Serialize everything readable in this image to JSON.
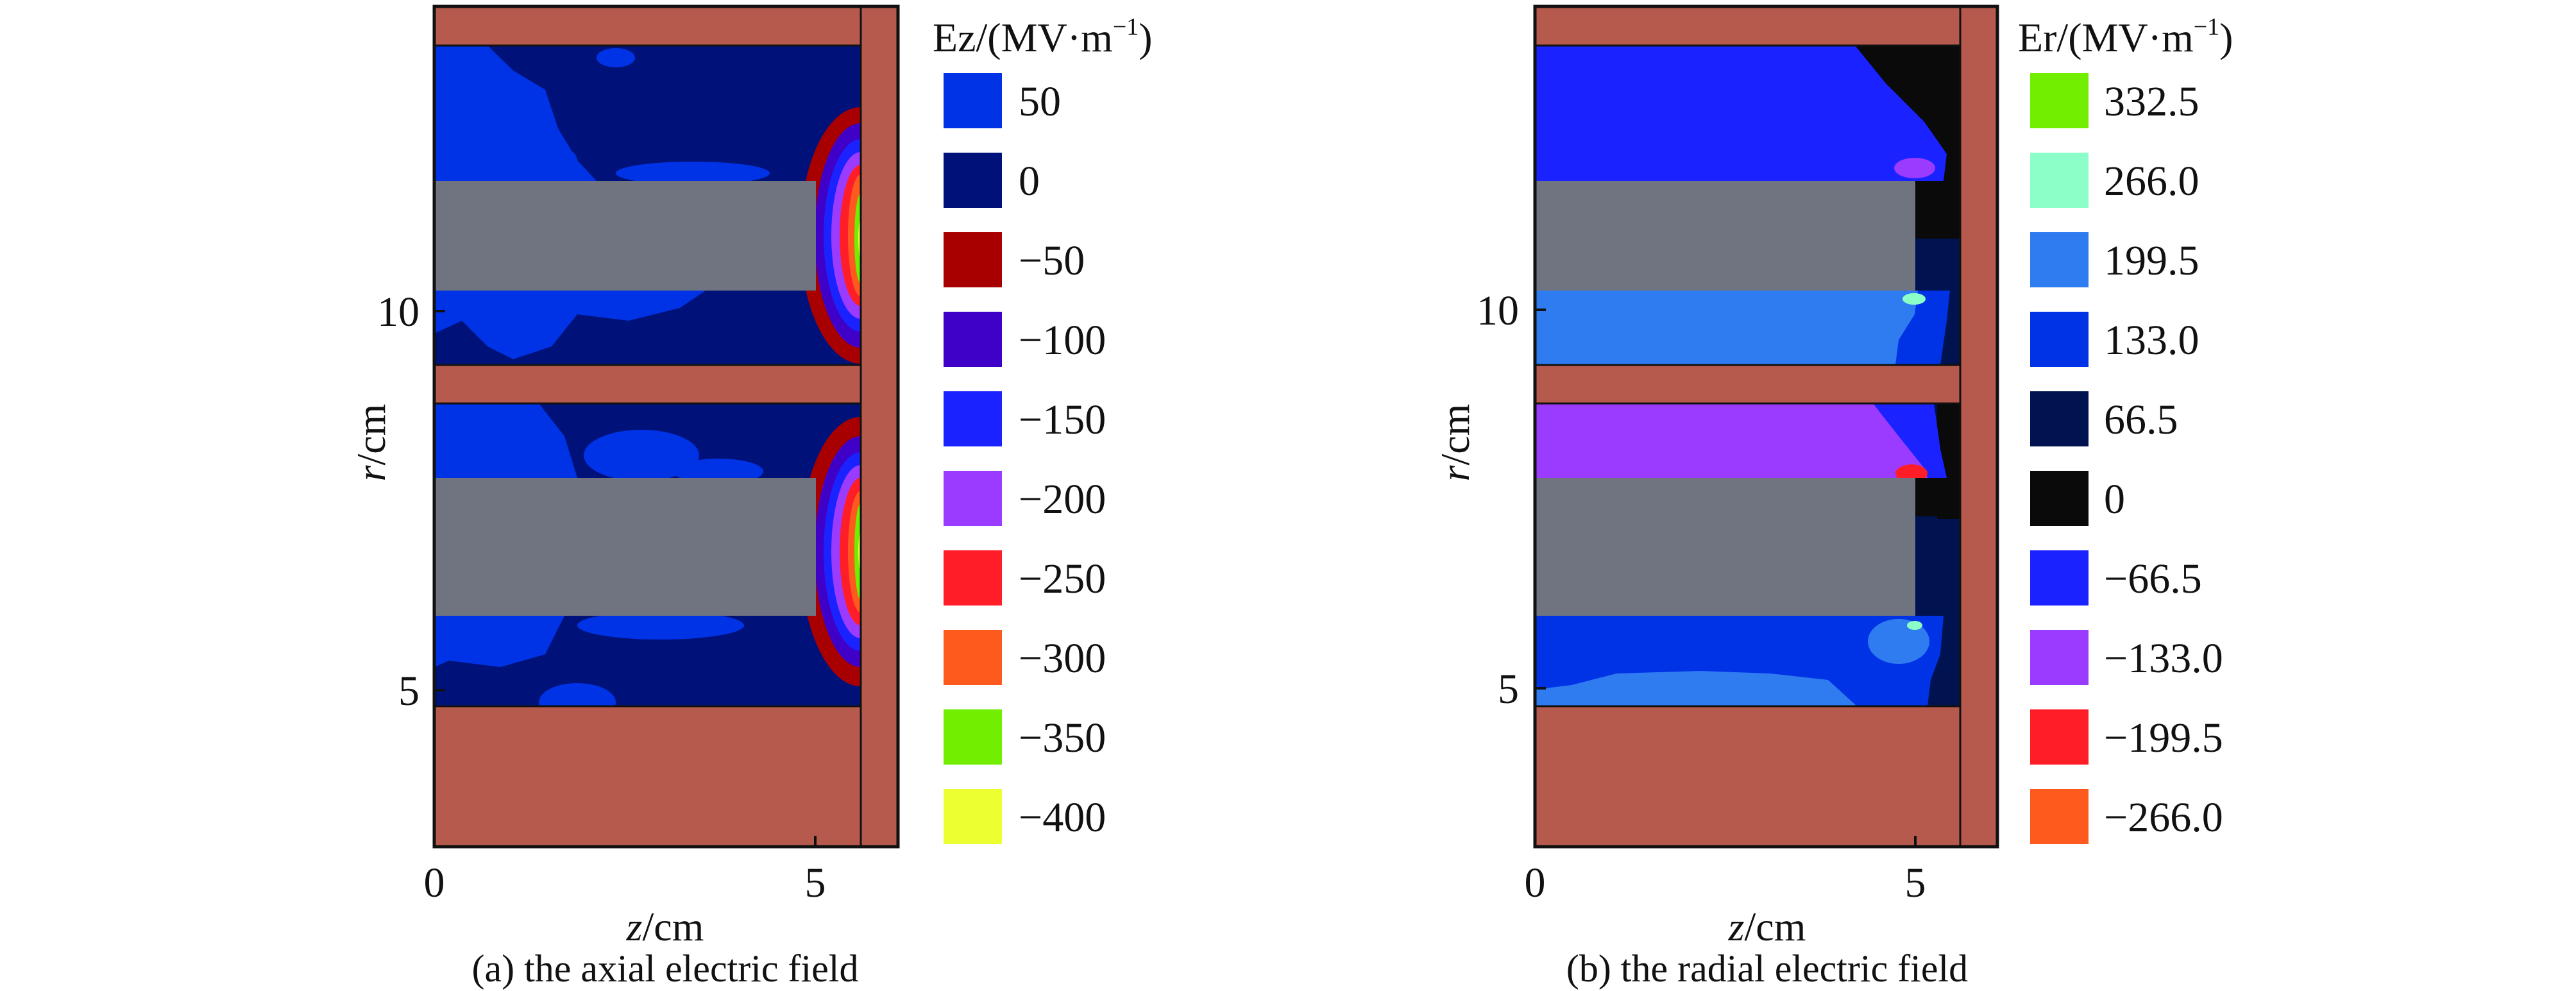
{
  "chart_data": [
    {
      "type": "heatmap",
      "panel": "a",
      "caption": "(a) the axial electric field",
      "xlabel_var": "z",
      "xlabel_unit": "/cm",
      "ylabel_var": "r",
      "ylabel_unit": "/cm",
      "xticks": [
        "0",
        "5"
      ],
      "yticks": [
        "10",
        "5"
      ],
      "colorbar_title": "Ez/(MV·m",
      "colorbar_title_sup": "−1",
      "colorbar_title_suffix": ")",
      "levels": [
        {
          "label": "50",
          "value": 50,
          "color": "#0033E6"
        },
        {
          "label": "0",
          "value": 0,
          "color": "#00127A"
        },
        {
          "label": "−50",
          "value": -50,
          "color": "#A80000"
        },
        {
          "label": "−100",
          "value": -100,
          "color": "#3F00C8"
        },
        {
          "label": "−150",
          "value": -150,
          "color": "#1A22FF"
        },
        {
          "label": "−200",
          "value": -200,
          "color": "#9B3BFF"
        },
        {
          "label": "−250",
          "value": -250,
          "color": "#FF1E28"
        },
        {
          "label": "−300",
          "value": -300,
          "color": "#FF5A1E"
        },
        {
          "label": "−350",
          "value": -350,
          "color": "#72EE00"
        },
        {
          "label": "−400",
          "value": -400,
          "color": "#ECFF30"
        }
      ]
    },
    {
      "type": "heatmap",
      "panel": "b",
      "caption": "(b) the radial electric field",
      "xlabel_var": "z",
      "xlabel_unit": "/cm",
      "ylabel_var": "r",
      "ylabel_unit": "/cm",
      "xticks": [
        "0",
        "5"
      ],
      "yticks": [
        "10",
        "5"
      ],
      "colorbar_title": "Er/(MV·m",
      "colorbar_title_sup": "−1",
      "colorbar_title_suffix": ")",
      "levels": [
        {
          "label": "332.5",
          "value": 332.5,
          "color": "#72EE00"
        },
        {
          "label": "266.0",
          "value": 266.0,
          "color": "#8CFFC8"
        },
        {
          "label": "199.5",
          "value": 199.5,
          "color": "#2F7BF0"
        },
        {
          "label": "133.0",
          "value": 133.0,
          "color": "#0033E6"
        },
        {
          "label": "66.5",
          "value": 66.5,
          "color": "#00124F"
        },
        {
          "label": "0",
          "value": 0,
          "color": "#0A0A0A"
        },
        {
          "label": "−66.5",
          "value": -66.5,
          "color": "#1A22FF"
        },
        {
          "label": "−133.0",
          "value": -133.0,
          "color": "#9B3BFF"
        },
        {
          "label": "−199.5",
          "value": -199.5,
          "color": "#FF1E28"
        },
        {
          "label": "−266.0",
          "value": -266.0,
          "color": "#FF5A1E"
        }
      ]
    }
  ],
  "colors": {
    "conductor": "#B55A4C",
    "rod": "#6F7480"
  }
}
